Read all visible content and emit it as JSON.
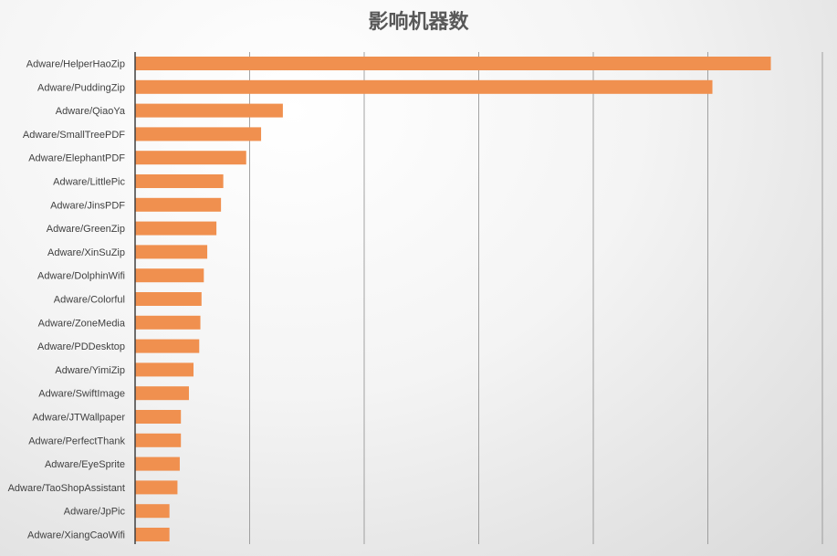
{
  "chart_data": {
    "type": "bar",
    "orientation": "horizontal",
    "title": "影响机器数",
    "xlabel": "",
    "ylabel": "",
    "categories": [
      "Adware/HelperHaoZip",
      "Adware/PuddingZip",
      "Adware/QiaoYa",
      "Adware/SmallTreePDF",
      "Adware/ElephantPDF",
      "Adware/LittlePic",
      "Adware/JinsPDF",
      "Adware/GreenZip",
      "Adware/XinSuZip",
      "Adware/DolphinWifi",
      "Adware/Colorful",
      "Adware/ZoneMedia",
      "Adware/PDDesktop",
      "Adware/YimiZip",
      "Adware/SwiftImage",
      "Adware/JTWallpaper",
      "Adware/PerfectThank",
      "Adware/EyeSprite",
      "Adware/TaoShopAssistant",
      "Adware/JpPic",
      "Adware/XiangCaoWifi"
    ],
    "values": [
      555,
      504,
      129,
      110,
      97,
      77,
      75,
      71,
      63,
      60,
      58,
      57,
      56,
      51,
      47,
      40,
      40,
      39,
      37,
      30,
      30
    ],
    "xlim": [
      0,
      600
    ],
    "gridlines": true,
    "tick_labels_shown": false,
    "legend": "none",
    "bar_color": "#F0904F",
    "grid_color": "#8C8C8C",
    "axis_color": "#404040"
  }
}
